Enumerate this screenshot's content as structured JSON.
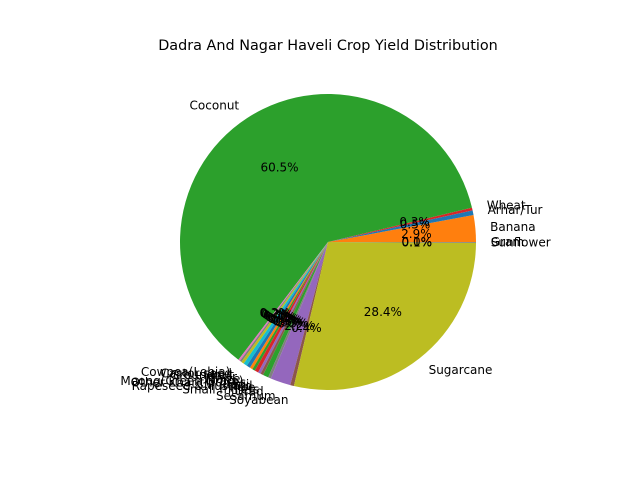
{
  "chart_data": {
    "type": "pie",
    "title": "Dadra And Nagar Haveli Crop Yield Distribution",
    "start_angle_deg": 0,
    "direction": "counterclockwise",
    "slices": [
      {
        "label": "Banana",
        "value": 2.9,
        "pct_label": "2.9%",
        "color": "#ff7f0e"
      },
      {
        "label": "Arhar/Tur",
        "value": 0.5,
        "pct_label": "0.5%",
        "color": "#1f77b4"
      },
      {
        "label": "Wheat",
        "value": 0.3,
        "pct_label": "0.3%",
        "color": "#d62728"
      },
      {
        "label": "Coconut",
        "value": 60.5,
        "pct_label": "60.5%",
        "color": "#2ca02c"
      },
      {
        "label": "Cowpea(Lobia)",
        "value": 0.2,
        "pct_label": "0.2%",
        "color": "#e377c2"
      },
      {
        "label": "Castor seed",
        "value": 0.2,
        "pct_label": "0.2%",
        "color": "#7f7f7f"
      },
      {
        "label": "Groundnut",
        "value": 0.3,
        "pct_label": "0.3%",
        "color": "#bcbd22"
      },
      {
        "label": "Jowar",
        "value": 0.4,
        "pct_label": "0.4%",
        "color": "#17becf"
      },
      {
        "label": "Maize",
        "value": 0.4,
        "pct_label": "0.4%",
        "color": "#1f77b4"
      },
      {
        "label": "Moong(Green Gram)",
        "value": 0.3,
        "pct_label": "0.3%",
        "color": "#ff7f0e"
      },
      {
        "label": "Other Kharif pulses",
        "value": 0.3,
        "pct_label": "0.3%",
        "color": "#2ca02c"
      },
      {
        "label": "Ragi",
        "value": 0.4,
        "pct_label": "0.4%",
        "color": "#d62728"
      },
      {
        "label": "Rapeseed &Mustard",
        "value": 0.3,
        "pct_label": "0.3%",
        "color": "#9467bd"
      },
      {
        "label": "Rice",
        "value": 0.3,
        "pct_label": "0.3%",
        "color": "#8c564b"
      },
      {
        "label": "Small millets",
        "value": 0.6,
        "pct_label": "0.6%",
        "color": "#2ca02c"
      },
      {
        "label": "Urad",
        "value": 0.3,
        "pct_label": "0.3%",
        "color": "#7f7f7f"
      },
      {
        "label": "Sesamum",
        "value": 2.2,
        "pct_label": "2.2%",
        "color": "#9467bd"
      },
      {
        "label": "Soyabean",
        "value": 0.4,
        "pct_label": "0.4%",
        "color": "#8c564b"
      },
      {
        "label": "Sugarcane",
        "value": 28.4,
        "pct_label": "28.4%",
        "color": "#bcbd22"
      },
      {
        "label": "Sunflower",
        "value": 0.1,
        "pct_label": "0.1%",
        "color": "#7f7f7f"
      },
      {
        "label": "Gram",
        "value": 0.0,
        "pct_label": "0.0%",
        "color": "#17becf"
      }
    ]
  }
}
